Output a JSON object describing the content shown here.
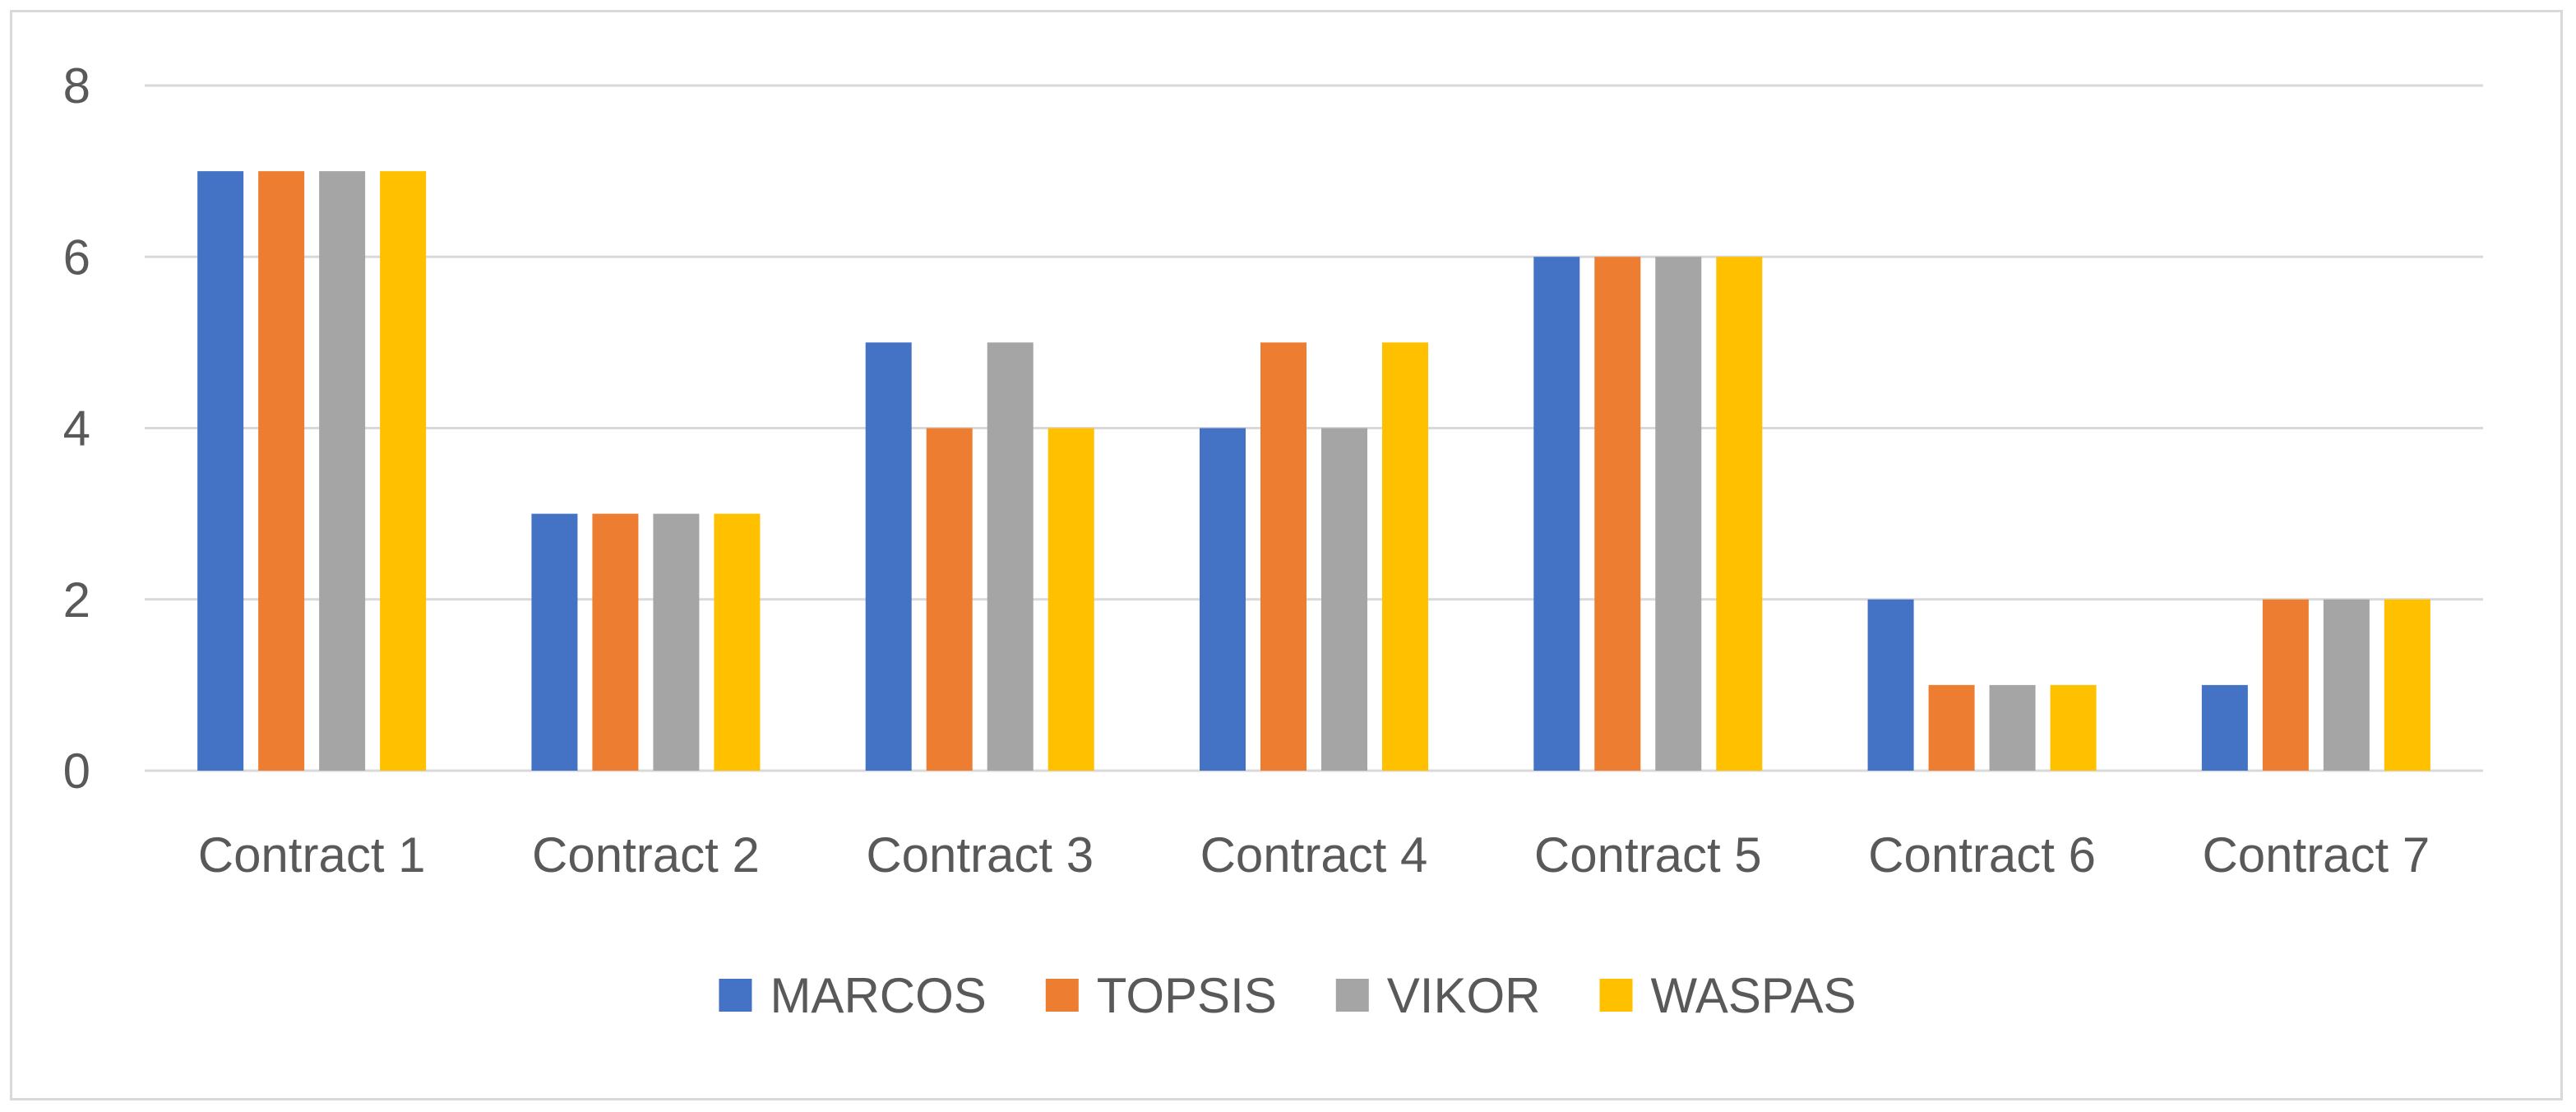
{
  "chart_data": {
    "type": "bar",
    "title": "",
    "xlabel": "",
    "ylabel": "",
    "categories": [
      "Contract 1",
      "Contract 2",
      "Contract 3",
      "Contract 4",
      "Contract 5",
      "Contract 6",
      "Contract 7"
    ],
    "series": [
      {
        "name": "MARCOS",
        "color": "#4472C4",
        "values": [
          7,
          3,
          5,
          4,
          6,
          2,
          1
        ]
      },
      {
        "name": "TOPSIS",
        "color": "#ED7D31",
        "values": [
          7,
          3,
          4,
          5,
          6,
          1,
          2
        ]
      },
      {
        "name": "VIKOR",
        "color": "#A5A5A5",
        "values": [
          7,
          3,
          5,
          4,
          6,
          1,
          2
        ]
      },
      {
        "name": "WASPAS",
        "color": "#FFC000",
        "values": [
          7,
          3,
          4,
          5,
          6,
          1,
          2
        ]
      }
    ],
    "ylim": [
      0,
      8
    ],
    "yticks": [
      "0",
      "2",
      "4",
      "6",
      "8"
    ],
    "grid": true,
    "legend_position": "bottom-center"
  }
}
